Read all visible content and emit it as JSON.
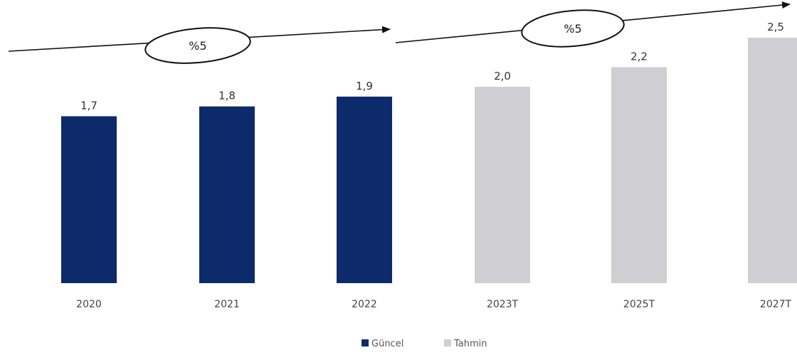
{
  "chart_data": {
    "type": "bar",
    "categories": [
      "2020",
      "2021",
      "2022",
      "2023T",
      "2025T",
      "2027T"
    ],
    "values": [
      1.7,
      1.8,
      1.9,
      2.0,
      2.2,
      2.5
    ],
    "value_labels": [
      "1,7",
      "1,8",
      "1,9",
      "2,0",
      "2,2",
      "2,5"
    ],
    "series_type": [
      "Güncel",
      "Güncel",
      "Güncel",
      "Tahmin",
      "Tahmin",
      "Tahmin"
    ],
    "series": [
      {
        "name": "Güncel",
        "color": "#0d2a6b"
      },
      {
        "name": "Tahmin",
        "color": "#cfcfd3"
      }
    ],
    "growth_annotations": [
      {
        "label": "%5",
        "from": "2020",
        "to": "2022"
      },
      {
        "label": "%5",
        "from": "2023T",
        "to": "2027T"
      }
    ],
    "legend_position": "bottom",
    "title": "",
    "xlabel": "",
    "ylabel": "",
    "grid": false
  }
}
